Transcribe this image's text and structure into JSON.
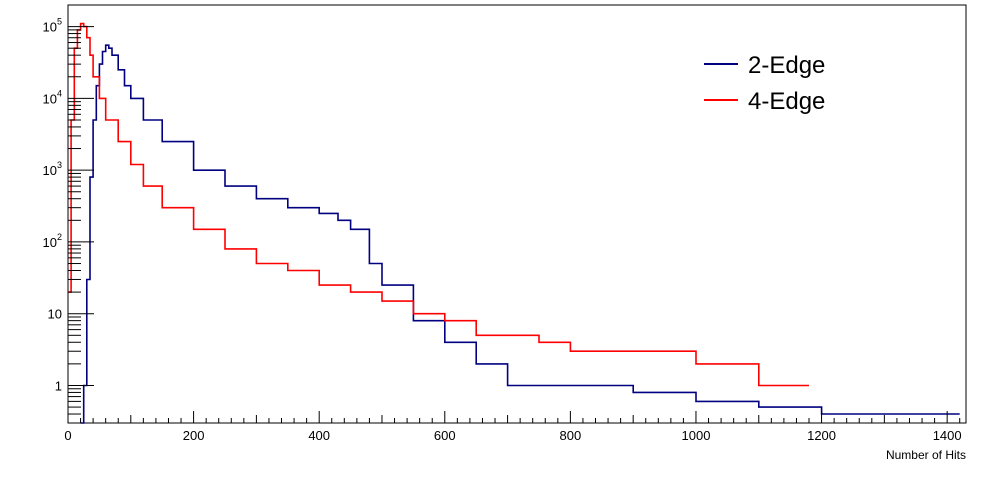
{
  "chart_data": {
    "type": "line",
    "xlabel": "Number of Hits",
    "ylabel": "",
    "xlim": [
      0,
      1430
    ],
    "ylim": [
      0.3,
      200000
    ],
    "y_scale": "log",
    "grid": false,
    "legend_position": "top-right",
    "x_ticks": [
      "0",
      "200",
      "400",
      "600",
      "800",
      "1000",
      "1200",
      "1400"
    ],
    "y_ticks": [
      {
        "base": "1",
        "exp": ""
      },
      {
        "base": "10",
        "exp": ""
      },
      {
        "base": "10",
        "exp": "2"
      },
      {
        "base": "10",
        "exp": "3"
      },
      {
        "base": "10",
        "exp": "4"
      },
      {
        "base": "10",
        "exp": "5"
      }
    ],
    "series": [
      {
        "name": "2-Edge",
        "color": "#000080",
        "x": [
          20,
          25,
          30,
          35,
          40,
          45,
          50,
          55,
          60,
          65,
          70,
          80,
          90,
          100,
          120,
          150,
          200,
          250,
          300,
          350,
          400,
          430,
          450,
          480,
          500,
          550,
          600,
          650,
          700,
          750,
          800,
          900,
          1000,
          1100,
          1200,
          1270,
          1420
        ],
        "values": [
          0.3,
          1,
          30,
          800,
          5000,
          15000,
          30000,
          45000,
          55000,
          50000,
          40000,
          25000,
          15000,
          10000,
          5000,
          2500,
          1000,
          600,
          400,
          300,
          250,
          200,
          150,
          50,
          25,
          8,
          4,
          2,
          1,
          1,
          1,
          0.8,
          0.6,
          0.5,
          0.4,
          0.4,
          0.4
        ]
      },
      {
        "name": "4-Edge",
        "color": "#ff0000",
        "x": [
          0,
          5,
          10,
          15,
          20,
          25,
          30,
          35,
          40,
          50,
          60,
          80,
          100,
          120,
          150,
          200,
          250,
          300,
          350,
          400,
          450,
          500,
          550,
          600,
          650,
          700,
          750,
          800,
          900,
          1000,
          1100,
          1180
        ],
        "values": [
          20,
          5000,
          50000,
          90000,
          110000,
          100000,
          70000,
          40000,
          20000,
          10000,
          5000,
          2500,
          1200,
          600,
          300,
          150,
          80,
          50,
          40,
          25,
          20,
          15,
          10,
          8,
          5,
          5,
          4,
          3,
          3,
          2,
          1,
          1
        ]
      }
    ]
  }
}
